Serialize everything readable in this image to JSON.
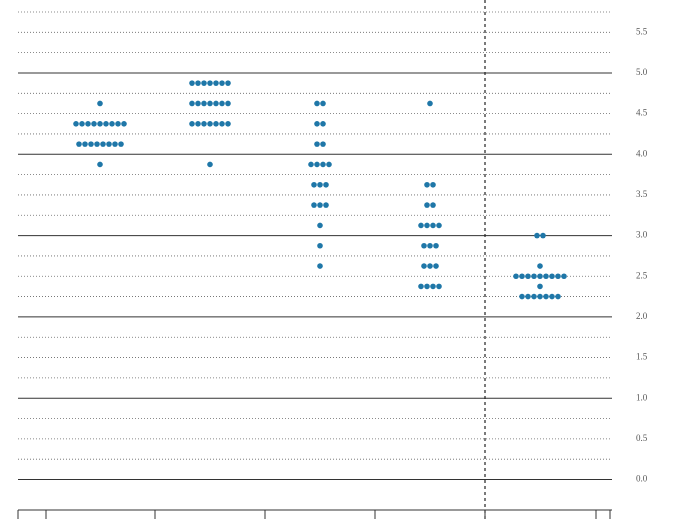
{
  "chart_data": {
    "type": "dot",
    "ylim": [
      -0.375,
      5.75
    ],
    "yticks": [
      {
        "value": 0,
        "label": "0.0"
      },
      0.5,
      {
        "value": 1,
        "label": "1.0"
      },
      1.5,
      {
        "value": 2,
        "label": "2.0"
      },
      2.5,
      {
        "value": 3,
        "label": "3.0"
      },
      3.5,
      {
        "value": 4,
        "label": "4.0"
      },
      4.5,
      {
        "value": 5,
        "label": "5.0"
      },
      5.5
    ],
    "minor_gridlines": [
      0.25,
      0.75,
      1.25,
      1.75,
      2.25,
      2.75,
      3.25,
      3.75,
      4.25,
      4.75,
      5.25,
      5.75
    ],
    "grid": true,
    "series": [
      {
        "color": "#1f77a8",
        "values": [
          4.625,
          4.375,
          4.375,
          4.375,
          4.375,
          4.375,
          4.375,
          4.375,
          4.375,
          4.375,
          4.125,
          4.125,
          4.125,
          4.125,
          4.125,
          4.125,
          4.125,
          4.125,
          3.875
        ]
      },
      {
        "color": "#1f77a8",
        "values": [
          4.875,
          4.875,
          4.875,
          4.875,
          4.875,
          4.875,
          4.875,
          4.625,
          4.625,
          4.625,
          4.625,
          4.625,
          4.625,
          4.625,
          4.375,
          4.375,
          4.375,
          4.375,
          4.375,
          4.375,
          4.375,
          3.875
        ]
      },
      {
        "color": "#1f77a8",
        "values": [
          4.625,
          4.625,
          4.375,
          4.375,
          4.125,
          4.125,
          3.875,
          3.875,
          3.875,
          3.875,
          3.625,
          3.625,
          3.625,
          3.375,
          3.375,
          3.375,
          3.125,
          2.875,
          2.625
        ]
      },
      {
        "color": "#1f77a8",
        "values": [
          4.625,
          3.625,
          3.625,
          3.375,
          3.375,
          3.125,
          3.125,
          3.125,
          3.125,
          2.875,
          2.875,
          2.875,
          2.625,
          2.625,
          2.625,
          2.375,
          2.375,
          2.375,
          2.375
        ]
      },
      {
        "color": "#1f77a8",
        "values": [
          3.0,
          3.0,
          2.625,
          2.5,
          2.5,
          2.5,
          2.5,
          2.5,
          2.5,
          2.5,
          2.5,
          2.5,
          2.375,
          2.25,
          2.25,
          2.25,
          2.25,
          2.25,
          2.25,
          2.25
        ]
      }
    ]
  }
}
